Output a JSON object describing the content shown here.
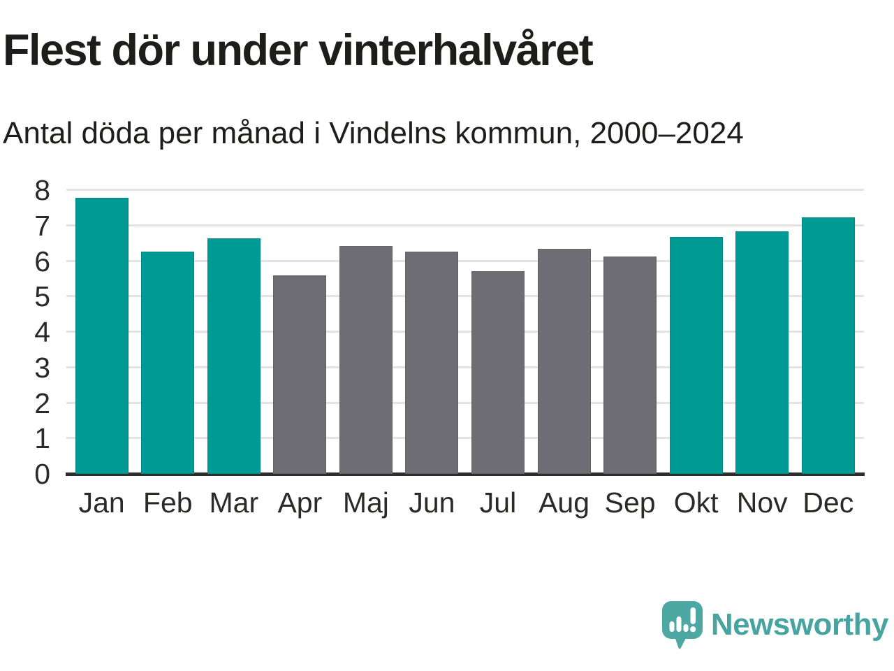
{
  "page": {
    "background": "#ffffff"
  },
  "chart_data": {
    "type": "bar",
    "title": "Flest dör under vinterhalvåret",
    "subtitle": "Antal döda per månad i Vindelns kommun, 2000–2024",
    "categories": [
      "Jan",
      "Feb",
      "Mar",
      "Apr",
      "Maj",
      "Jun",
      "Jul",
      "Aug",
      "Sep",
      "Okt",
      "Nov",
      "Dec"
    ],
    "values": [
      7.78,
      6.26,
      6.65,
      5.6,
      6.43,
      6.27,
      5.71,
      6.34,
      6.12,
      6.68,
      6.84,
      7.24
    ],
    "highlight": [
      true,
      true,
      true,
      false,
      false,
      false,
      false,
      false,
      false,
      true,
      true,
      true
    ],
    "highlighted_months": [
      "Jan",
      "Feb",
      "Mar",
      "Okt",
      "Nov",
      "Dec"
    ],
    "xlabel": "",
    "ylabel": "",
    "ylim": [
      0,
      8
    ],
    "y_ticks": [
      0,
      1,
      2,
      3,
      4,
      5,
      6,
      7,
      8
    ],
    "grid": true,
    "legend_position": "none",
    "colors": {
      "highlight_bar": "#009a94",
      "default_bar": "#6e6d73",
      "gridline": "#e3e3e3",
      "axis_line": "#2e2d2c",
      "tick_text": "#2b2a28",
      "title_text": "#1d1d1b"
    }
  },
  "footer": {
    "brand": "Newsworthy",
    "brand_color": "#47a4a0",
    "logo_icon": "newsworthy-speech-bubble-chart-icon",
    "logo_icon_color": "#4da8a3"
  }
}
